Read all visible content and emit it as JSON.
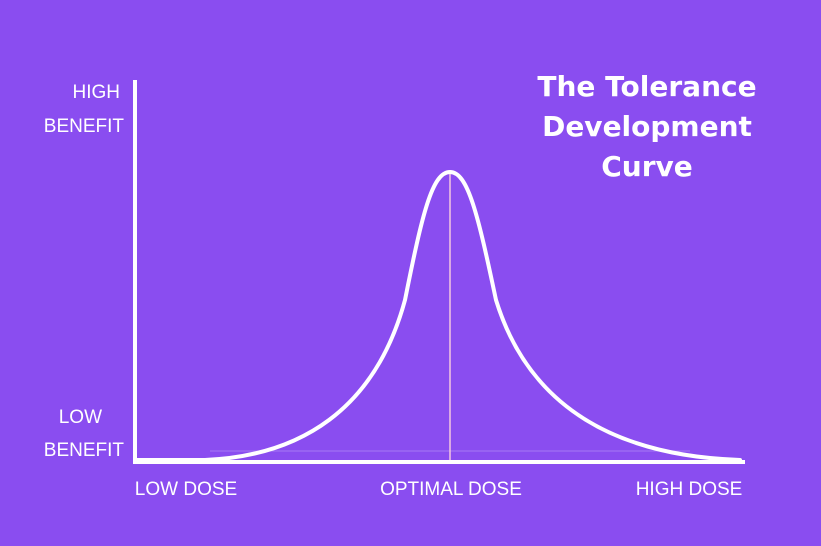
{
  "title": {
    "lines": [
      "The Tolerance",
      "Development",
      "Curve"
    ]
  },
  "y_axis": {
    "top_label": [
      "HIGH",
      "BENEFIT"
    ],
    "bottom_label": [
      "LOW",
      "BENEFIT"
    ]
  },
  "x_axis": {
    "labels": [
      "LOW DOSE",
      "OPTIMAL DOSE",
      "HIGH DOSE"
    ]
  }
}
